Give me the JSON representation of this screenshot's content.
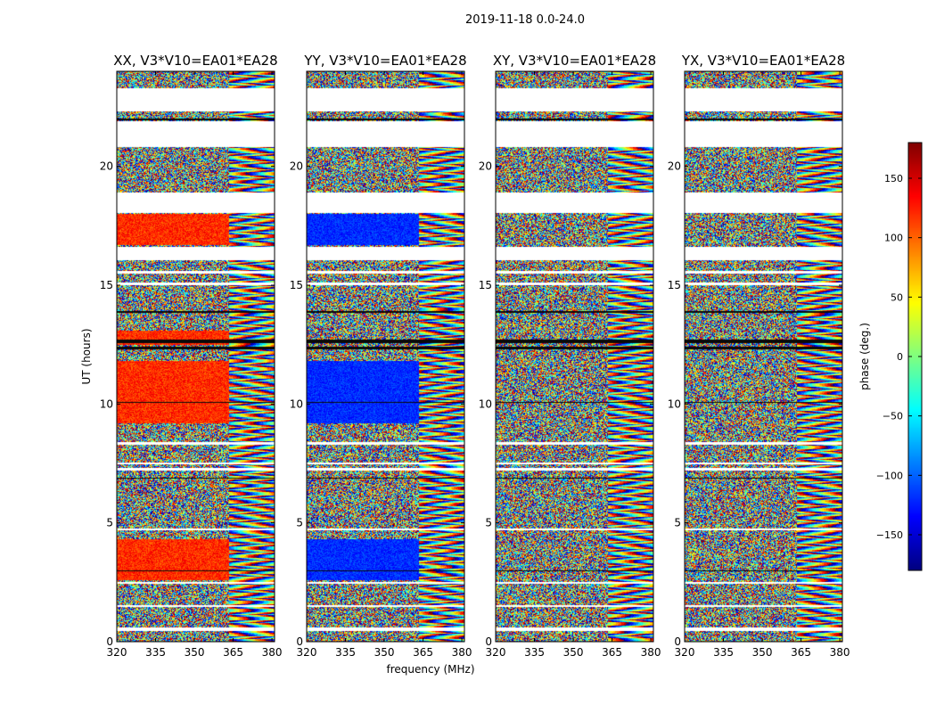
{
  "figure": {
    "suptitle": "2019-11-18 0.0-24.0",
    "xlabel": "frequency (MHz)",
    "ylabel": "UT (hours)",
    "colorbar_label": "phase (deg.)"
  },
  "chart_data": {
    "type": "heatmap",
    "title": "2019-11-18 0.0-24.0",
    "xlabel": "frequency (MHz)",
    "ylabel": "UT (hours)",
    "xlim": [
      320,
      381
    ],
    "ylim": [
      0,
      24
    ],
    "xticks": [
      320,
      335,
      350,
      365,
      380
    ],
    "xtick_labels": [
      "320",
      "335",
      "350",
      "365",
      "380"
    ],
    "yticks": [
      0,
      5,
      10,
      15,
      20
    ],
    "ytick_labels": [
      "0",
      "5",
      "10",
      "15",
      "20"
    ],
    "panels": [
      {
        "title": "XX, V3*V10=EA01*EA28",
        "bias": 120,
        "bias_spread": 25,
        "bias_bands": [
          [
            2.6,
            4.3
          ],
          [
            9.2,
            11.8
          ],
          [
            12.5,
            13.1
          ],
          [
            16.7,
            18.0
          ]
        ]
      },
      {
        "title": "YY, V3*V10=EA01*EA28",
        "bias": -120,
        "bias_spread": 20,
        "bias_bands": [
          [
            2.6,
            4.3
          ],
          [
            9.2,
            11.8
          ],
          [
            16.7,
            18.0
          ]
        ]
      },
      {
        "title": "XY, V3*V10=EA01*EA28",
        "bias": null,
        "bias_spread": 0,
        "bias_bands": []
      },
      {
        "title": "YX, V3*V10=EA01*EA28",
        "bias": null,
        "bias_spread": 0,
        "bias_bands": []
      }
    ],
    "flagged_ut_ranges": [
      [
        0.45,
        0.6
      ],
      [
        1.45,
        1.55
      ],
      [
        2.42,
        2.5
      ],
      [
        4.7,
        4.78
      ],
      [
        7.2,
        7.3
      ],
      [
        7.45,
        7.55
      ],
      [
        8.3,
        8.4
      ],
      [
        15.0,
        15.1
      ],
      [
        15.5,
        15.6
      ],
      [
        16.05,
        16.6
      ],
      [
        18.05,
        18.9
      ],
      [
        20.8,
        21.0
      ],
      [
        21.0,
        21.9
      ],
      [
        22.3,
        23.3
      ]
    ],
    "dark_ut_ranges": [
      [
        2.95,
        3.0
      ],
      [
        6.85,
        6.9
      ],
      [
        10.05,
        10.1
      ],
      [
        12.3,
        12.42
      ],
      [
        12.58,
        12.7
      ],
      [
        13.85,
        13.9
      ],
      [
        20.95,
        21.0
      ],
      [
        21.95,
        22.0
      ]
    ],
    "colorbar": {
      "label": "phase (deg.)",
      "vmin": -180,
      "vmax": 180,
      "ticks": [
        150,
        100,
        50,
        0,
        -50,
        -100,
        -150
      ],
      "tick_labels": [
        "150",
        "100",
        "50",
        "0",
        "−50",
        "−100",
        "−150"
      ],
      "colormap": "jet"
    }
  }
}
